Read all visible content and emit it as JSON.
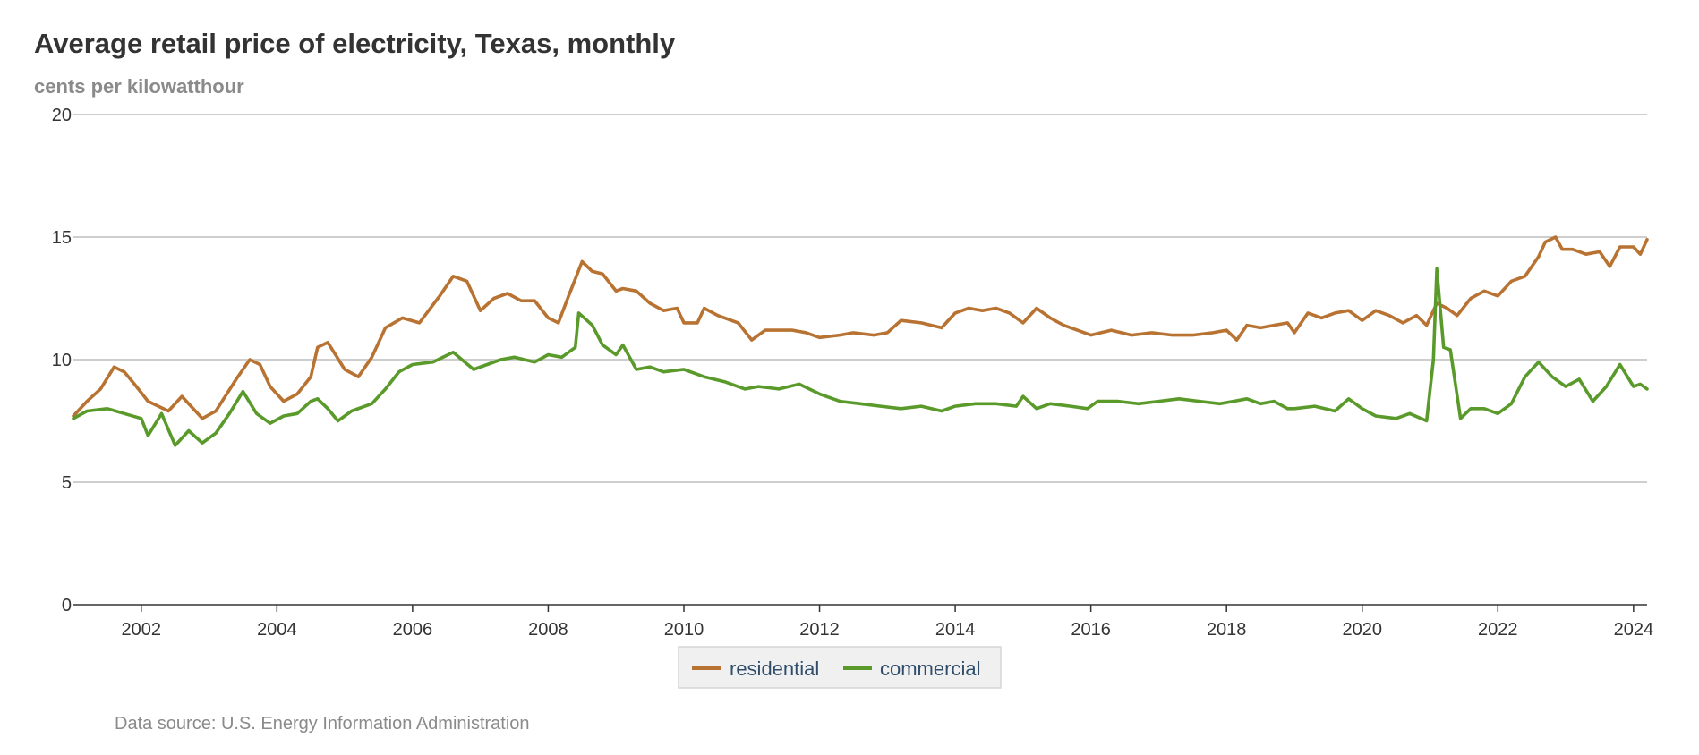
{
  "chart_data": {
    "type": "line",
    "title": "Average retail price of electricity, Texas, monthly",
    "subtitle": "cents per kilowatthour",
    "source": "Data source: U.S. Energy Information Administration",
    "xlabel": "",
    "ylabel": "cents per kilowatthour",
    "xlim": [
      2001.0,
      2024.2
    ],
    "ylim": [
      0,
      20
    ],
    "y_ticks": [
      0,
      5,
      10,
      15,
      20
    ],
    "x_ticks": [
      2002,
      2004,
      2006,
      2008,
      2010,
      2012,
      2014,
      2016,
      2018,
      2020,
      2022,
      2024
    ],
    "grid": true,
    "legend_position": "bottom-center",
    "series": [
      {
        "name": "residential",
        "color": "#b87333",
        "x": [
          2001.0,
          2001.2,
          2001.4,
          2001.6,
          2001.75,
          2001.9,
          2002.1,
          2002.4,
          2002.6,
          2002.9,
          2003.1,
          2003.4,
          2003.6,
          2003.75,
          2003.9,
          2004.1,
          2004.3,
          2004.5,
          2004.6,
          2004.75,
          2005.0,
          2005.2,
          2005.4,
          2005.6,
          2005.85,
          2006.1,
          2006.4,
          2006.6,
          2006.8,
          2007.0,
          2007.2,
          2007.4,
          2007.6,
          2007.8,
          2008.0,
          2008.15,
          2008.3,
          2008.5,
          2008.65,
          2008.8,
          2009.0,
          2009.1,
          2009.3,
          2009.5,
          2009.7,
          2009.9,
          2010.0,
          2010.2,
          2010.3,
          2010.5,
          2010.8,
          2011.0,
          2011.2,
          2011.4,
          2011.6,
          2011.8,
          2012.0,
          2012.3,
          2012.5,
          2012.8,
          2013.0,
          2013.2,
          2013.5,
          2013.8,
          2014.0,
          2014.2,
          2014.4,
          2014.6,
          2014.8,
          2015.0,
          2015.2,
          2015.4,
          2015.6,
          2015.8,
          2016.0,
          2016.3,
          2016.6,
          2016.9,
          2017.2,
          2017.5,
          2017.8,
          2018.0,
          2018.15,
          2018.3,
          2018.5,
          2018.7,
          2018.9,
          2019.0,
          2019.2,
          2019.4,
          2019.6,
          2019.8,
          2020.0,
          2020.2,
          2020.4,
          2020.6,
          2020.8,
          2020.95,
          2021.1,
          2021.25,
          2021.4,
          2021.6,
          2021.8,
          2022.0,
          2022.2,
          2022.4,
          2022.6,
          2022.7,
          2022.85,
          2022.95,
          2023.1,
          2023.3,
          2023.5,
          2023.65,
          2023.8,
          2024.0,
          2024.1,
          2024.2
        ],
        "values": [
          7.7,
          8.3,
          8.8,
          9.7,
          9.5,
          9.0,
          8.3,
          7.9,
          8.5,
          7.6,
          7.9,
          9.2,
          10.0,
          9.8,
          8.9,
          8.3,
          8.6,
          9.3,
          10.5,
          10.7,
          9.6,
          9.3,
          10.1,
          11.3,
          11.7,
          11.5,
          12.6,
          13.4,
          13.2,
          12.0,
          12.5,
          12.7,
          12.4,
          12.4,
          11.7,
          11.5,
          12.6,
          14.0,
          13.6,
          13.5,
          12.8,
          12.9,
          12.8,
          12.3,
          12.0,
          12.1,
          11.5,
          11.5,
          12.1,
          11.8,
          11.5,
          10.8,
          11.2,
          11.2,
          11.2,
          11.1,
          10.9,
          11.0,
          11.1,
          11.0,
          11.1,
          11.6,
          11.5,
          11.3,
          11.9,
          12.1,
          12.0,
          12.1,
          11.9,
          11.5,
          12.1,
          11.7,
          11.4,
          11.2,
          11.0,
          11.2,
          11.0,
          11.1,
          11.0,
          11.0,
          11.1,
          11.2,
          10.8,
          11.4,
          11.3,
          11.4,
          11.5,
          11.1,
          11.9,
          11.7,
          11.9,
          12.0,
          11.6,
          12.0,
          11.8,
          11.5,
          11.8,
          11.4,
          12.3,
          12.1,
          11.8,
          12.5,
          12.8,
          12.6,
          13.2,
          13.4,
          14.2,
          14.8,
          15.0,
          14.5,
          14.5,
          14.3,
          14.4,
          13.8,
          14.6,
          14.6,
          14.3,
          14.9
        ]
      },
      {
        "name": "commercial",
        "color": "#5a9a2a",
        "x": [
          2001.0,
          2001.2,
          2001.5,
          2001.75,
          2002.0,
          2002.1,
          2002.3,
          2002.5,
          2002.7,
          2002.9,
          2003.1,
          2003.3,
          2003.5,
          2003.7,
          2003.9,
          2004.1,
          2004.3,
          2004.5,
          2004.6,
          2004.75,
          2004.9,
          2005.1,
          2005.4,
          2005.6,
          2005.8,
          2006.0,
          2006.3,
          2006.6,
          2006.9,
          2007.1,
          2007.3,
          2007.5,
          2007.8,
          2008.0,
          2008.2,
          2008.4,
          2008.45,
          2008.65,
          2008.8,
          2009.0,
          2009.1,
          2009.3,
          2009.5,
          2009.7,
          2010.0,
          2010.3,
          2010.6,
          2010.9,
          2011.1,
          2011.4,
          2011.7,
          2012.0,
          2012.3,
          2012.6,
          2012.9,
          2013.2,
          2013.5,
          2013.8,
          2014.0,
          2014.3,
          2014.6,
          2014.9,
          2015.0,
          2015.2,
          2015.4,
          2015.7,
          2015.95,
          2016.1,
          2016.4,
          2016.7,
          2017.0,
          2017.3,
          2017.6,
          2017.9,
          2018.1,
          2018.3,
          2018.5,
          2018.7,
          2018.9,
          2019.0,
          2019.3,
          2019.6,
          2019.8,
          2020.0,
          2020.2,
          2020.5,
          2020.7,
          2020.95,
          2021.05,
          2021.1,
          2021.2,
          2021.3,
          2021.45,
          2021.6,
          2021.8,
          2022.0,
          2022.2,
          2022.4,
          2022.6,
          2022.8,
          2023.0,
          2023.2,
          2023.4,
          2023.6,
          2023.8,
          2024.0,
          2024.1,
          2024.2
        ],
        "values": [
          7.6,
          7.9,
          8.0,
          7.8,
          7.6,
          6.9,
          7.8,
          6.5,
          7.1,
          6.6,
          7.0,
          7.8,
          8.7,
          7.8,
          7.4,
          7.7,
          7.8,
          8.3,
          8.4,
          8.0,
          7.5,
          7.9,
          8.2,
          8.8,
          9.5,
          9.8,
          9.9,
          10.3,
          9.6,
          9.8,
          10.0,
          10.1,
          9.9,
          10.2,
          10.1,
          10.5,
          11.9,
          11.4,
          10.6,
          10.2,
          10.6,
          9.6,
          9.7,
          9.5,
          9.6,
          9.3,
          9.1,
          8.8,
          8.9,
          8.8,
          9.0,
          8.6,
          8.3,
          8.2,
          8.1,
          8.0,
          8.1,
          7.9,
          8.1,
          8.2,
          8.2,
          8.1,
          8.5,
          8.0,
          8.2,
          8.1,
          8.0,
          8.3,
          8.3,
          8.2,
          8.3,
          8.4,
          8.3,
          8.2,
          8.3,
          8.4,
          8.2,
          8.3,
          8.0,
          8.0,
          8.1,
          7.9,
          8.4,
          8.0,
          7.7,
          7.6,
          7.8,
          7.5,
          10.0,
          13.7,
          10.5,
          10.4,
          7.6,
          8.0,
          8.0,
          7.8,
          8.2,
          9.3,
          9.9,
          9.3,
          8.9,
          9.2,
          8.3,
          8.9,
          9.8,
          8.9,
          9.0,
          8.8
        ]
      }
    ]
  }
}
